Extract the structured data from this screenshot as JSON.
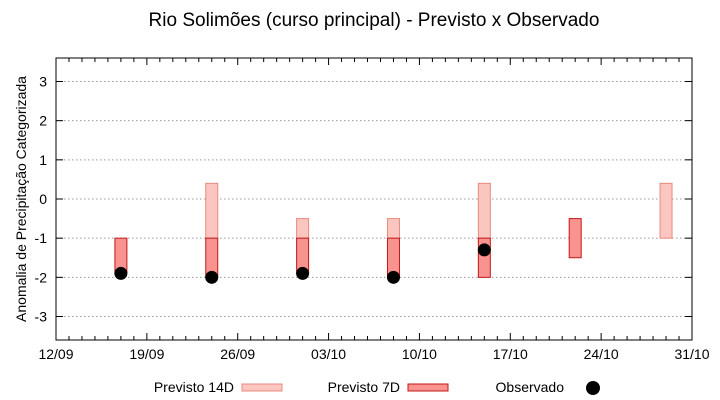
{
  "chart_data": {
    "type": "floating-bar",
    "title": "Rio Solimões (curso principal) - Previsto x Observado",
    "xlabel": "",
    "ylabel": "Anomalia de Precipitação Categorizada",
    "xlim": [
      "2024-09-12",
      "2024-10-31"
    ],
    "ylim": [
      -3.6,
      3.6
    ],
    "y_ticks": [
      3,
      2,
      1,
      0,
      -1,
      -2,
      -3
    ],
    "y_tick_labels": [
      "3",
      "2",
      "1",
      "0",
      "-1",
      "-2",
      "-3"
    ],
    "x_ticks": [
      "2024-09-12",
      "2024-09-19",
      "2024-09-26",
      "2024-10-03",
      "2024-10-10",
      "2024-10-17",
      "2024-10-24",
      "2024-10-31"
    ],
    "x_tick_labels": [
      "12/09",
      "19/09",
      "26/09",
      "03/10",
      "10/10",
      "17/10",
      "24/10",
      "31/10"
    ],
    "grid": "horizontal-dotted",
    "legend_position": "bottom",
    "series": [
      {
        "name": "Previsto 14D",
        "color": "#fbc6c0",
        "edge_color": "#e88a80",
        "points": [
          {
            "x": "2024-09-24",
            "low": -1.0,
            "high": 0.4
          },
          {
            "x": "2024-10-01",
            "low": -1.0,
            "high": -0.5
          },
          {
            "x": "2024-10-08",
            "low": -1.0,
            "high": -0.5
          },
          {
            "x": "2024-10-15",
            "low": -1.0,
            "high": 0.4
          },
          {
            "x": "2024-10-29",
            "low": -1.0,
            "high": 0.4
          }
        ]
      },
      {
        "name": "Previsto 7D",
        "color": "#f99390",
        "edge_color": "#c01818",
        "points": [
          {
            "x": "2024-09-17",
            "low": -1.9,
            "high": -1.0
          },
          {
            "x": "2024-09-24",
            "low": -2.0,
            "high": -1.0
          },
          {
            "x": "2024-10-01",
            "low": -1.9,
            "high": -1.0
          },
          {
            "x": "2024-10-08",
            "low": -2.0,
            "high": -1.0
          },
          {
            "x": "2024-10-15",
            "low": -2.0,
            "high": -1.0
          },
          {
            "x": "2024-10-22",
            "low": -1.5,
            "high": -0.5
          }
        ]
      },
      {
        "name": "Observado",
        "color": "#000000",
        "points": [
          {
            "x": "2024-09-17",
            "y": -1.9
          },
          {
            "x": "2024-09-24",
            "y": -2.0
          },
          {
            "x": "2024-10-01",
            "y": -1.9
          },
          {
            "x": "2024-10-08",
            "y": -2.0
          },
          {
            "x": "2024-10-15",
            "y": -1.3
          }
        ]
      }
    ]
  }
}
